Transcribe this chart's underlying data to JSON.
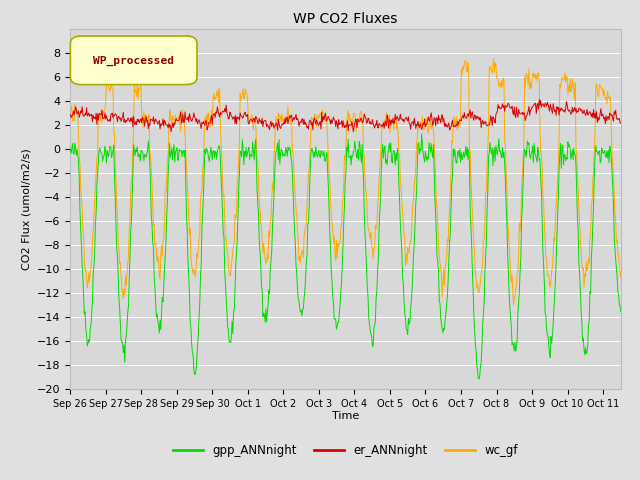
{
  "title": "WP CO2 Fluxes",
  "xlabel": "Time",
  "ylabel": "CO2 Flux (umol/m2/s)",
  "ylim": [
    -20,
    10
  ],
  "yticks": [
    -20,
    -18,
    -16,
    -14,
    -12,
    -10,
    -8,
    -6,
    -4,
    -2,
    0,
    2,
    4,
    6,
    8
  ],
  "x_tick_labels": [
    "Sep 26",
    "Sep 27",
    "Sep 28",
    "Sep 29",
    "Sep 30",
    "Oct 1",
    "Oct 2",
    "Oct 3",
    "Oct 4",
    "Oct 5",
    "Oct 6",
    "Oct 7",
    "Oct 8",
    "Oct 9",
    "Oct 10",
    "Oct 11"
  ],
  "legend_label": "WP_processed",
  "legend_bg": "#ffffcc",
  "legend_edge": "#aaaa00",
  "legend_text_color": "#8B0000",
  "line_colors": {
    "gpp": "#00dd00",
    "er": "#dd0000",
    "wc": "#ffaa00"
  },
  "fig_bg": "#e0e0e0",
  "plot_bg": "#d8d8d8",
  "grid_color": "#ffffff",
  "linewidth": 0.7,
  "n_points": 750,
  "period_days": 15.5,
  "day_amplitudes_gpp": [
    16,
    17,
    15,
    18.5,
    16,
    14,
    14,
    15,
    16,
    15,
    15,
    19,
    17,
    17,
    17,
    13
  ],
  "day_amplitudes_wc": [
    13,
    14,
    12,
    12.5,
    12,
    11,
    11,
    11,
    10.5,
    11,
    13,
    14,
    14,
    13,
    13,
    12
  ],
  "night_wc": [
    3.0,
    5.0,
    2.5,
    2.5,
    4.5,
    2.5,
    2.5,
    2.5,
    2.5,
    2.0,
    2.0,
    7.0,
    5.5,
    6.0,
    5.0,
    4.5
  ],
  "base_er": [
    2.8,
    2.5,
    2.2,
    2.3,
    2.8,
    2.2,
    2.3,
    2.2,
    2.2,
    2.2,
    2.2,
    2.5,
    3.2,
    3.5,
    3.0,
    2.5
  ]
}
